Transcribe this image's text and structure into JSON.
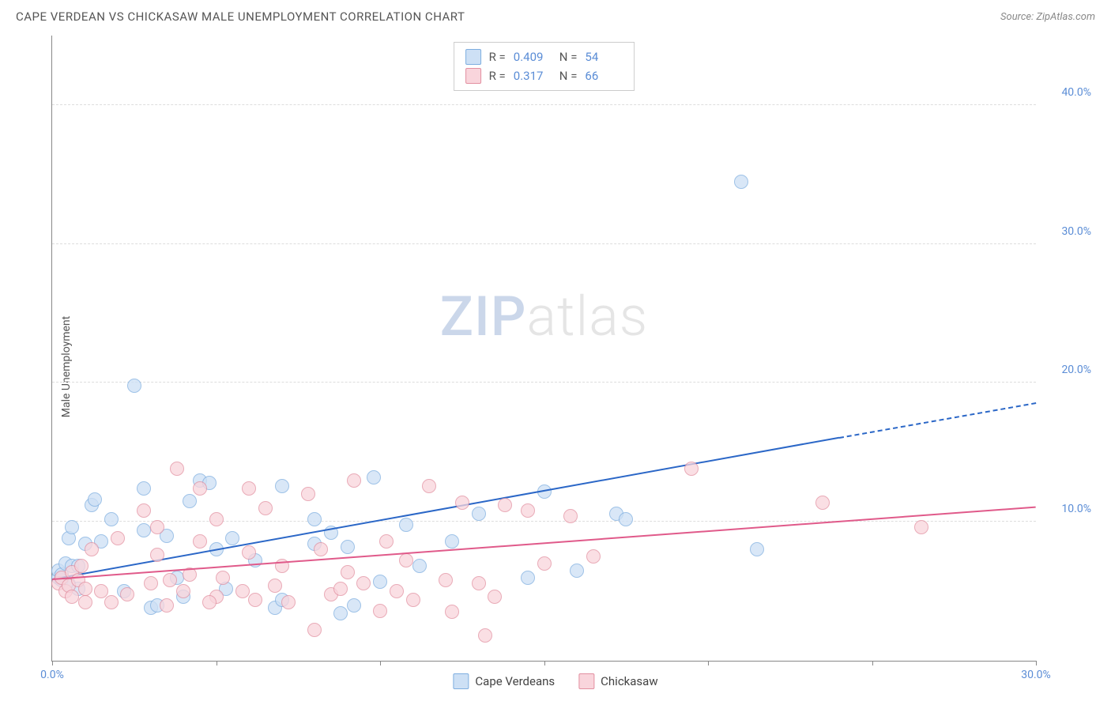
{
  "header": {
    "title": "CAPE VERDEAN VS CHICKASAW MALE UNEMPLOYMENT CORRELATION CHART",
    "source_prefix": "Source: ",
    "source_name": "ZipAtlas.com"
  },
  "y_axis_label": "Male Unemployment",
  "watermark": {
    "zip": "ZIP",
    "atlas": "atlas"
  },
  "chart": {
    "type": "scatter",
    "xlim": [
      0,
      30
    ],
    "ylim": [
      0,
      45
    ],
    "x_ticks": [
      0,
      5,
      10,
      15,
      20,
      25,
      30
    ],
    "x_tick_labels": {
      "0": "0.0%",
      "30": "30.0%"
    },
    "y_ticks": [
      10,
      20,
      30,
      40
    ],
    "y_tick_labels": {
      "10": "10.0%",
      "20": "20.0%",
      "30": "30.0%",
      "40": "40.0%"
    },
    "grid_color": "#dddddd",
    "background_color": "#ffffff",
    "series": [
      {
        "name": "Cape Verdeans",
        "legend_label": "Cape Verdeans",
        "marker_fill": "#cde0f5",
        "marker_stroke": "#7eaee0",
        "marker_opacity": 0.75,
        "line_color": "#2b67c7",
        "r_value": "0.409",
        "n_value": "54",
        "trend": {
          "x1": 0,
          "y1": 5.8,
          "x2": 24,
          "y2": 16.0,
          "dash_to_x": 30,
          "dash_to_y": 18.5
        },
        "points": [
          [
            0.2,
            6.0
          ],
          [
            0.2,
            6.5
          ],
          [
            0.3,
            5.8
          ],
          [
            0.3,
            6.2
          ],
          [
            0.4,
            7.0
          ],
          [
            0.5,
            5.5
          ],
          [
            0.5,
            8.8
          ],
          [
            0.6,
            6.8
          ],
          [
            0.6,
            9.6
          ],
          [
            0.8,
            5.2
          ],
          [
            0.8,
            6.8
          ],
          [
            1.0,
            8.4
          ],
          [
            1.2,
            11.2
          ],
          [
            1.5,
            8.6
          ],
          [
            1.8,
            10.2
          ],
          [
            2.2,
            5.0
          ],
          [
            2.5,
            19.8
          ],
          [
            2.8,
            9.4
          ],
          [
            2.8,
            12.4
          ],
          [
            3.0,
            3.8
          ],
          [
            3.2,
            4.0
          ],
          [
            3.5,
            9.0
          ],
          [
            3.8,
            6.0
          ],
          [
            4.0,
            4.6
          ],
          [
            4.5,
            13.0
          ],
          [
            4.8,
            12.8
          ],
          [
            5.0,
            8.0
          ],
          [
            5.3,
            5.2
          ],
          [
            5.5,
            8.8
          ],
          [
            6.2,
            7.2
          ],
          [
            6.8,
            3.8
          ],
          [
            7.0,
            4.4
          ],
          [
            7.0,
            12.6
          ],
          [
            8.0,
            8.4
          ],
          [
            8.0,
            10.2
          ],
          [
            8.5,
            9.2
          ],
          [
            8.8,
            3.4
          ],
          [
            9.0,
            8.2
          ],
          [
            9.2,
            4.0
          ],
          [
            9.8,
            13.2
          ],
          [
            10.0,
            5.7
          ],
          [
            10.8,
            9.8
          ],
          [
            11.2,
            6.8
          ],
          [
            12.2,
            8.6
          ],
          [
            13.0,
            10.6
          ],
          [
            14.5,
            6.0
          ],
          [
            15.0,
            12.2
          ],
          [
            16.0,
            6.5
          ],
          [
            17.2,
            10.6
          ],
          [
            17.5,
            10.2
          ],
          [
            21.0,
            34.5
          ],
          [
            21.5,
            8.0
          ],
          [
            4.2,
            11.5
          ],
          [
            1.3,
            11.6
          ]
        ]
      },
      {
        "name": "Chickasaw",
        "legend_label": "Chickasaw",
        "marker_fill": "#f9d5dc",
        "marker_stroke": "#e28fa0",
        "marker_opacity": 0.75,
        "line_color": "#e05a8a",
        "r_value": "0.317",
        "n_value": "66",
        "trend": {
          "x1": 0,
          "y1": 5.8,
          "x2": 30,
          "y2": 11.0
        },
        "points": [
          [
            0.2,
            5.6
          ],
          [
            0.3,
            6.0
          ],
          [
            0.4,
            5.0
          ],
          [
            0.5,
            5.4
          ],
          [
            0.6,
            6.4
          ],
          [
            0.6,
            4.6
          ],
          [
            0.8,
            5.8
          ],
          [
            0.9,
            6.8
          ],
          [
            1.0,
            4.2
          ],
          [
            1.0,
            5.2
          ],
          [
            1.2,
            8.0
          ],
          [
            1.5,
            5.0
          ],
          [
            1.8,
            4.2
          ],
          [
            2.0,
            8.8
          ],
          [
            2.3,
            4.8
          ],
          [
            2.8,
            10.8
          ],
          [
            3.0,
            5.6
          ],
          [
            3.2,
            7.6
          ],
          [
            3.2,
            9.6
          ],
          [
            3.5,
            4.0
          ],
          [
            3.8,
            13.8
          ],
          [
            4.0,
            5.0
          ],
          [
            4.2,
            6.2
          ],
          [
            4.5,
            8.6
          ],
          [
            4.5,
            12.4
          ],
          [
            5.0,
            4.6
          ],
          [
            5.0,
            10.2
          ],
          [
            5.2,
            6.0
          ],
          [
            5.8,
            5.0
          ],
          [
            6.0,
            7.8
          ],
          [
            6.2,
            4.4
          ],
          [
            6.5,
            11.0
          ],
          [
            6.8,
            5.4
          ],
          [
            7.0,
            6.8
          ],
          [
            7.2,
            4.2
          ],
          [
            7.8,
            12.0
          ],
          [
            8.0,
            2.2
          ],
          [
            8.2,
            8.0
          ],
          [
            8.5,
            4.8
          ],
          [
            9.0,
            6.4
          ],
          [
            9.2,
            13.0
          ],
          [
            9.5,
            5.6
          ],
          [
            10.0,
            3.6
          ],
          [
            10.2,
            8.6
          ],
          [
            10.5,
            5.0
          ],
          [
            10.8,
            7.2
          ],
          [
            11.0,
            4.4
          ],
          [
            11.5,
            12.6
          ],
          [
            12.0,
            5.8
          ],
          [
            12.2,
            3.5
          ],
          [
            12.5,
            11.4
          ],
          [
            13.0,
            5.6
          ],
          [
            13.2,
            1.8
          ],
          [
            13.5,
            4.6
          ],
          [
            13.8,
            11.2
          ],
          [
            14.5,
            10.8
          ],
          [
            15.0,
            7.0
          ],
          [
            15.8,
            10.4
          ],
          [
            16.5,
            7.5
          ],
          [
            19.5,
            13.8
          ],
          [
            23.5,
            11.4
          ],
          [
            26.5,
            9.6
          ],
          [
            3.6,
            5.8
          ],
          [
            4.8,
            4.2
          ],
          [
            6.0,
            12.4
          ],
          [
            8.8,
            5.2
          ]
        ]
      }
    ]
  },
  "stats_legend": {
    "r_label": "R =",
    "n_label": "N ="
  }
}
